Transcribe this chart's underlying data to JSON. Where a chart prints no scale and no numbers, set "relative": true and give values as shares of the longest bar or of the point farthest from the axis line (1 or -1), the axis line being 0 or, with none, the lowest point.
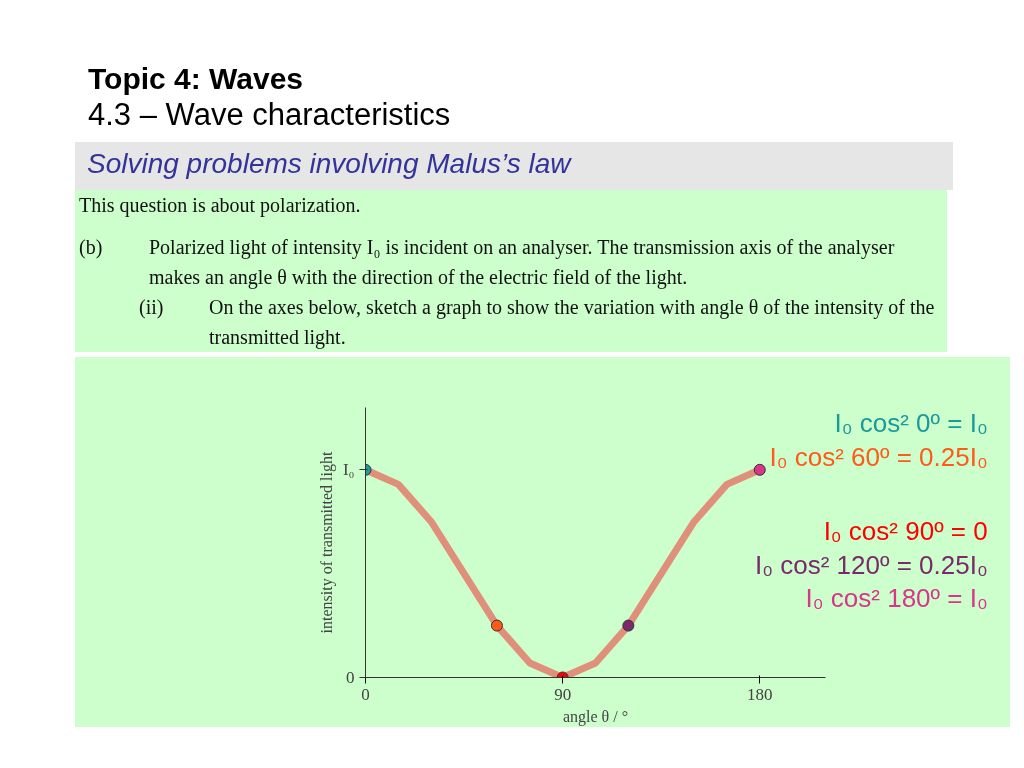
{
  "chart_data": {
    "type": "line",
    "title": "Topic 4: Waves",
    "subtitle": "4.3 – Wave characteristics",
    "xlabel": "angle θ / °",
    "ylabel": "intensity of transmitted light",
    "xlim": [
      0,
      210
    ],
    "xticks": [
      0,
      90,
      180
    ],
    "relative": true,
    "grid": false,
    "series": [
      {
        "color": "#e0907a",
        "x": [
          0,
          15,
          30,
          45,
          60,
          75,
          90,
          105,
          120,
          135,
          150,
          165,
          180
        ],
        "values": [
          1,
          0.93,
          0.75,
          0.5,
          0.25,
          0.07,
          0,
          0.07,
          0.25,
          0.5,
          0.75,
          0.93,
          1
        ]
      },
      {
        "type": "scatter",
        "marker": "circle",
        "x": [
          0,
          60,
          90,
          120,
          180
        ],
        "values": [
          1,
          0.25,
          0,
          0.25,
          1
        ],
        "colors": [
          "#1a9a9a",
          "#ff5a1a",
          "#ff0000",
          "#7a2a6a",
          "#d9368a"
        ]
      }
    ],
    "annotations": [
      "Solving problems involving Malus’s law",
      "This question is about polarization.",
      "(b)",
      "Polarized light of intensity I₀ is incident on an analyser. The transmission axis of the analyser makes an angle θ with the direction of the electric field of the light.",
      "(ii)",
      "On the axes below, sketch a graph to show the variation with angle θ of the intensity of the transmitted light.",
      "I₀ cos² 0º = I₀",
      "I₀ cos² 60º = 0.25I₀",
      "I₀ cos² 90º = 0",
      "I₀ cos² 120º = 0.25I₀",
      "I₀ cos² 180º = I₀",
      "I₀",
      "0"
    ]
  }
}
